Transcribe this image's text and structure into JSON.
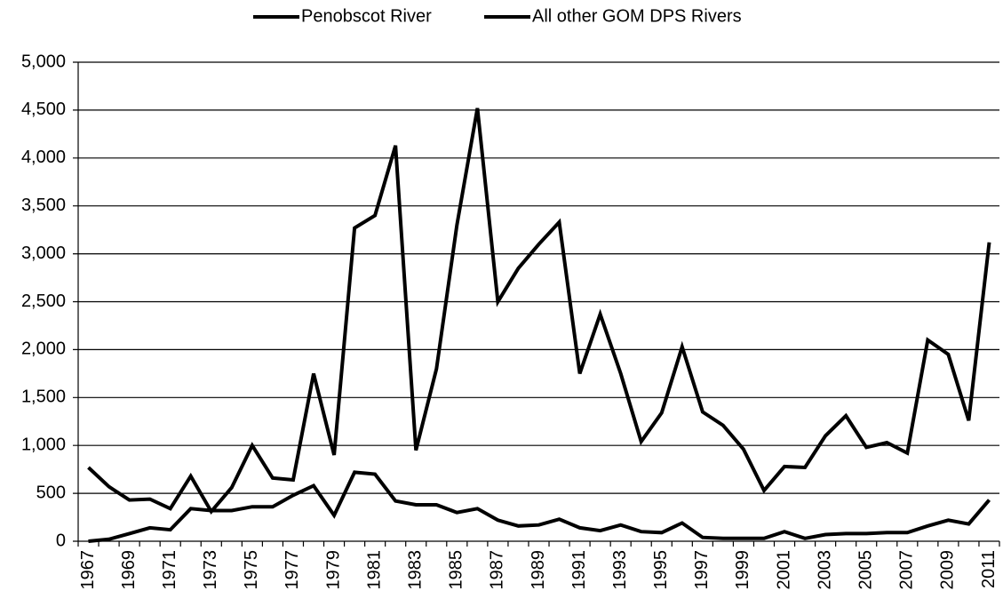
{
  "chart_data": {
    "type": "line",
    "categories": [
      "1967",
      null,
      "1969",
      null,
      "1971",
      null,
      "1973",
      null,
      "1975",
      null,
      "1977",
      null,
      "1979",
      null,
      "1981",
      null,
      "1983",
      null,
      "1985",
      null,
      "1987",
      null,
      "1989",
      null,
      "1991",
      null,
      "1993",
      null,
      "1995",
      null,
      "1997",
      null,
      "1999",
      null,
      "2001",
      null,
      "2003",
      null,
      "2005",
      null,
      "2007",
      null,
      "2009",
      null,
      "2011"
    ],
    "series": [
      {
        "name": "Penobscot River",
        "color": "#000000",
        "values": [
          770,
          570,
          430,
          440,
          340,
          680,
          310,
          560,
          1000,
          660,
          640,
          1750,
          900,
          3270,
          3400,
          4130,
          950,
          1800,
          3300,
          4520,
          2500,
          2850,
          3100,
          3330,
          1750,
          2370,
          1750,
          1040,
          1340,
          2030,
          1350,
          1210,
          960,
          530,
          780,
          770,
          1100,
          1310,
          980,
          1030,
          920,
          2100,
          1950,
          1260,
          3120
        ]
      },
      {
        "name": "All other GOM DPS Rivers",
        "color": "#000000",
        "values": [
          0,
          20,
          80,
          140,
          120,
          340,
          320,
          320,
          360,
          360,
          480,
          580,
          270,
          720,
          700,
          420,
          380,
          380,
          300,
          340,
          220,
          160,
          170,
          230,
          140,
          110,
          170,
          100,
          90,
          190,
          40,
          30,
          30,
          30,
          100,
          30,
          70,
          80,
          80,
          90,
          90,
          160,
          220,
          180,
          430
        ]
      }
    ],
    "ylim": [
      0,
      5000
    ],
    "yticks": [
      0,
      500,
      {
        "value": 1000,
        "label": "1,000"
      },
      {
        "value": 1500,
        "label": "1,500"
      },
      {
        "value": 2000,
        "label": "2,000"
      },
      {
        "value": 2500,
        "label": "2,500"
      },
      {
        "value": 3000,
        "label": "3,000"
      },
      {
        "value": 3500,
        "label": "3,500"
      },
      {
        "value": 4000,
        "label": "4,000"
      },
      {
        "value": 4500,
        "label": "4,500"
      },
      {
        "value": 5000,
        "label": "5,000"
      }
    ],
    "grid": true,
    "legend": "top"
  }
}
